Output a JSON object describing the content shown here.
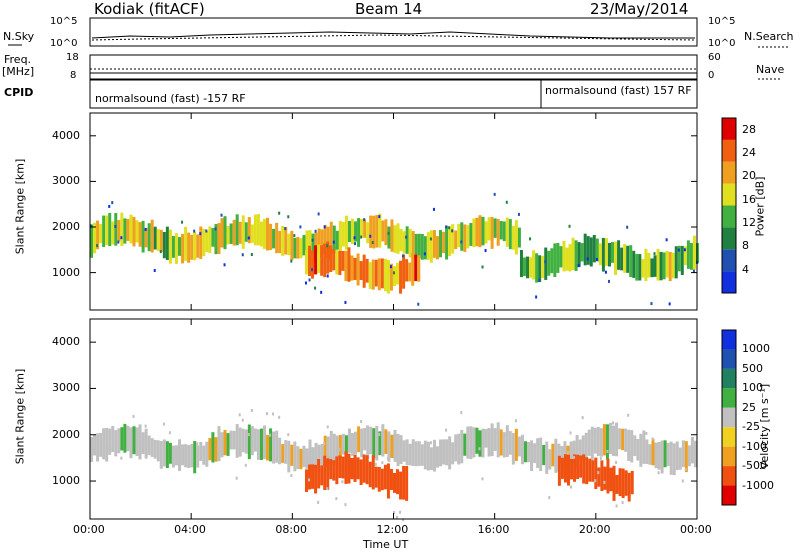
{
  "header": {
    "station": "Kodiak (fitACF)",
    "beam": "Beam 14",
    "date": "23/May/2014"
  },
  "sidepanels": {
    "nsky_label": "N.Sky",
    "nsearch_label": "N.Search",
    "freq_label_1": "Freq.",
    "freq_label_2": "[MHz]",
    "nave_label": "Nave",
    "cpid_label": "CPID",
    "noise_ticks": [
      "10^5",
      "10^0"
    ],
    "noise_ticks_right": [
      "10^5",
      "10^0"
    ],
    "freq_ticks": [
      "18",
      "8"
    ],
    "nave_ticks": [
      "60",
      "0"
    ]
  },
  "cpid": {
    "segment1": "normalsound (fast) -157 RF",
    "segment2": "normalsound (fast) 157 RF"
  },
  "colors": {
    "power_scale": [
      "#1030e0",
      "#2050b0",
      "#208040",
      "#40b040",
      "#e0e020",
      "#f0a020",
      "#f06010",
      "#e00000"
    ],
    "velocity_scale": [
      "#e00000",
      "#f05010",
      "#f0a020",
      "#f0d020",
      "#c0c0c0",
      "#40b040",
      "#208060",
      "#2050b0",
      "#1030e0"
    ]
  },
  "chart_data": [
    {
      "type": "heatmap",
      "title": "",
      "ylabel": "Slant Range [km]",
      "xlabel": "Time UT",
      "xlim": [
        "00:00",
        "24:00"
      ],
      "ylim": [
        180,
        4500
      ],
      "yticks": [
        "1000",
        "2000",
        "3000",
        "4000"
      ],
      "colorbar": {
        "label": "Power [dB]",
        "ticks": [
          "4",
          "8",
          "12",
          "16",
          "20",
          "24",
          "28"
        ],
        "range": [
          0,
          30
        ]
      },
      "bands": [
        {
          "t_start": 0.0,
          "t_end": 17.0,
          "range_km": 1750,
          "power_db": 16
        },
        {
          "t_start": 17.0,
          "t_end": 24.0,
          "range_km": 1300,
          "power_db": 14
        },
        {
          "t_start": 8.5,
          "t_end": 13.0,
          "range_km": 1100,
          "power_db": 22
        }
      ]
    },
    {
      "type": "heatmap",
      "title": "",
      "ylabel": "Slant Range [km]",
      "xlabel": "Time UT",
      "xlim": [
        "00:00",
        "24:00"
      ],
      "ylim": [
        180,
        4500
      ],
      "yticks": [
        "1000",
        "2000",
        "3000",
        "4000"
      ],
      "colorbar": {
        "label": "Velocity [m s⁻¹]",
        "ticks": [
          "1000",
          "500",
          "100",
          "25",
          "-25",
          "-100",
          "-500",
          "-1000"
        ]
      },
      "bands": [
        {
          "t_start": 0.0,
          "t_end": 24.0,
          "range_km": 1700,
          "velocity_ms": 0
        },
        {
          "t_start": 8.5,
          "t_end": 12.5,
          "range_km": 1100,
          "velocity_ms": -300
        },
        {
          "t_start": 18.5,
          "t_end": 21.5,
          "range_km": 1100,
          "velocity_ms": -200
        }
      ]
    }
  ],
  "xaxis": {
    "ticks": [
      "00:00",
      "04:00",
      "08:00",
      "12:00",
      "16:00",
      "20:00",
      "00:00"
    ],
    "label": "Time UT"
  }
}
